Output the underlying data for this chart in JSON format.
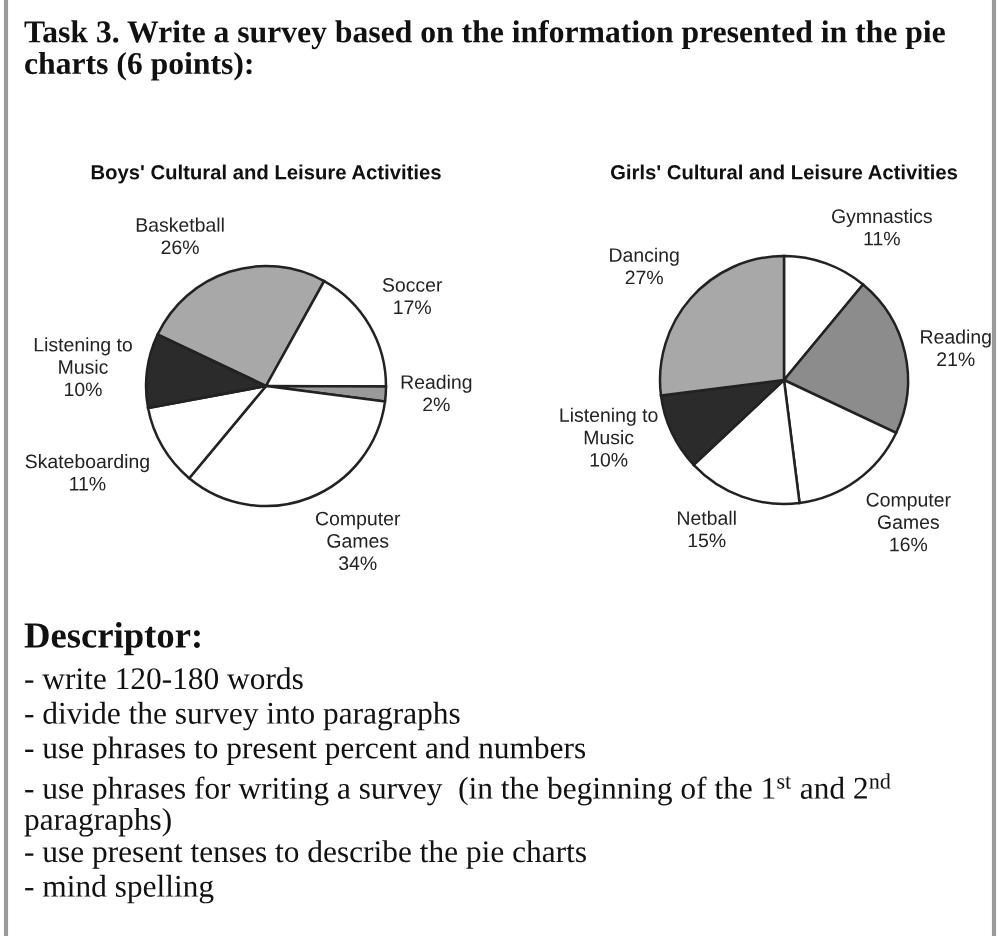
{
  "chart_data": [
    {
      "type": "other",
      "title": "Task 3. Write a survey based on the information presented in the pie charts (6 points):"
    },
    {
      "type": "pie",
      "title": "Boys' Cultural and Leisure Activities",
      "categories": [
        "Basketball",
        "Soccer",
        "Reading",
        "Computer\nGames",
        "Skateboarding",
        "Listening to\nMusic"
      ],
      "values": [
        26,
        17,
        2,
        34,
        11,
        10
      ],
      "value_labels": [
        "26%",
        "17%",
        "2%",
        "34%",
        "11%",
        "10%"
      ],
      "colors": [
        "#a8a8a8",
        "#ffffff",
        "#9a9a9a",
        "#ffffff",
        "#ffffff",
        "#2b2b2b"
      ]
    },
    {
      "type": "pie",
      "title": "Girls' Cultural and Leisure Activities",
      "categories": [
        "Gymnastics",
        "Reading",
        "Computer\nGames",
        "Netball",
        "Listening to\nMusic",
        "Dancing"
      ],
      "values": [
        11,
        21,
        16,
        15,
        10,
        27
      ],
      "value_labels": [
        "11%",
        "21%",
        "16%",
        "15%",
        "10%",
        "27%"
      ],
      "colors": [
        "#ffffff",
        "#8c8c8c",
        "#ffffff",
        "#ffffff",
        "#2b2b2b",
        "#a8a8a8"
      ]
    },
    {
      "type": "other",
      "title": "Descriptor:",
      "annotations": [
        "- write 120-180 words",
        "- divide the survey into paragraphs",
        "- use phrases to present percent and numbers",
        "- use phrases for writing a survey  (in the beginning of the 1$^{st}$ and 2$^{nd}$ paragraphs)",
        "- use present tenses to describe the pie charts",
        "- mind spelling"
      ]
    }
  ]
}
